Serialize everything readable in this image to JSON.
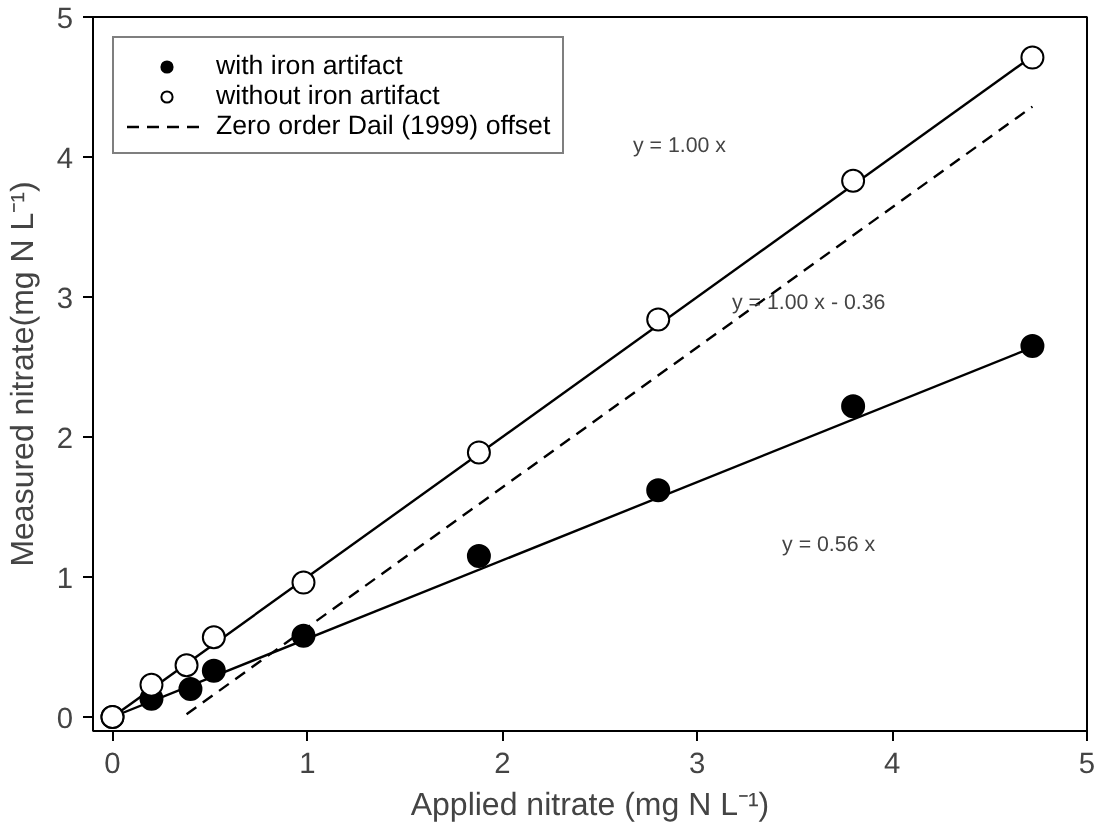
{
  "chart_data": {
    "type": "scatter",
    "xlabel": "Applied nitrate (mg N L⁻¹)",
    "ylabel": "Measured nitrate(mg N L⁻¹)",
    "xlim": [
      -0.1,
      5
    ],
    "ylim": [
      -0.1,
      5
    ],
    "xticks": [
      0,
      1,
      2,
      3,
      4,
      5
    ],
    "yticks": [
      0,
      1,
      2,
      3,
      4,
      5
    ],
    "grid": false,
    "legend": "top left",
    "series": [
      {
        "name": "with iron artifact",
        "marker": "circle",
        "color": "#000000",
        "x": [
          0,
          0.2,
          0.4,
          0.52,
          0.98,
          1.88,
          2.8,
          3.8,
          4.72
        ],
        "values": [
          0,
          0.13,
          0.2,
          0.33,
          0.58,
          1.15,
          1.62,
          2.22,
          2.65
        ]
      },
      {
        "name": "without iron artifact",
        "marker": "circle",
        "color": "#ffffff",
        "x": [
          0,
          0.2,
          0.38,
          0.52,
          0.98,
          1.88,
          2.8,
          3.8,
          4.72
        ],
        "values": [
          0,
          0.23,
          0.37,
          0.57,
          0.96,
          1.89,
          2.84,
          3.83,
          4.71
        ]
      },
      {
        "name": "Zero order Dail (1999) offset",
        "type": "line",
        "line_style": "dashed",
        "color": "#000000",
        "x": [
          0.38,
          4.72
        ],
        "values": [
          0.02,
          4.36
        ]
      },
      {
        "type": "line",
        "line_style": "solid",
        "color": "#000000",
        "x": [
          0,
          4.72
        ],
        "values": [
          0,
          4.72
        ]
      },
      {
        "type": "line",
        "line_style": "solid",
        "color": "#000000",
        "x": [
          0,
          4.72
        ],
        "values": [
          0,
          2.64
        ]
      }
    ],
    "annotations": [
      "y = 1.00 x",
      "y = 1.00 x - 0.36",
      "y = 0.56 x"
    ]
  }
}
